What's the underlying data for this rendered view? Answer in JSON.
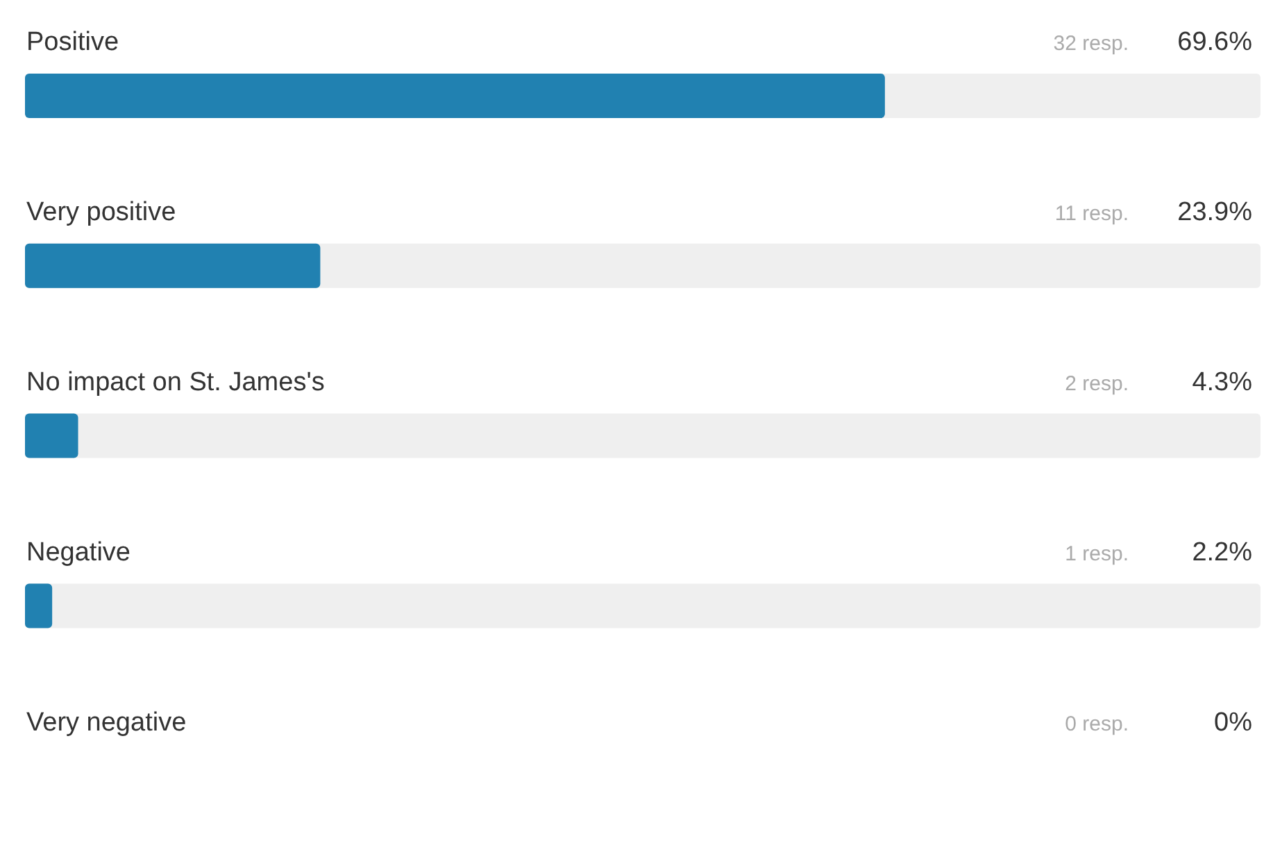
{
  "chart_data": {
    "type": "bar",
    "orientation": "horizontal",
    "categories": [
      "Positive",
      "Very positive",
      "No impact on St. James's",
      "Negative",
      "Very negative"
    ],
    "series": [
      {
        "color": "#2181b1",
        "values": [
          69.6,
          23.9,
          4.3,
          2.2,
          0
        ],
        "value_labels": [
          "69.6%",
          "23.9%",
          "4.3%",
          "2.2%",
          "0%"
        ]
      }
    ],
    "annotations": [
      "32 resp.",
      "11 resp.",
      "2 resp.",
      "1 resp.",
      "0 resp."
    ],
    "xlim": [
      0,
      100
    ],
    "tick_labels": "y"
  }
}
